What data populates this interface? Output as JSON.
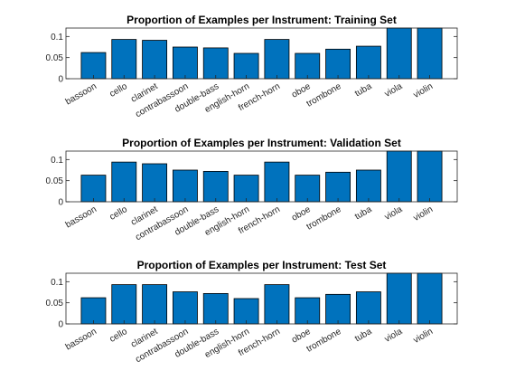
{
  "bar_color": "#0072BD",
  "chart_data": [
    {
      "type": "bar",
      "title": "Proportion of Examples per Instrument: Training Set",
      "categories": [
        "bassoon",
        "cello",
        "clarinet",
        "contrabassoon",
        "double-bass",
        "english-horn",
        "french-horn",
        "oboe",
        "trombone",
        "tuba",
        "viola",
        "violin"
      ],
      "values": [
        0.062,
        0.093,
        0.091,
        0.075,
        0.073,
        0.06,
        0.093,
        0.06,
        0.07,
        0.077,
        0.12,
        0.12
      ],
      "ylim": [
        0,
        0.12
      ],
      "yticks": [
        0,
        0.05,
        0.1
      ],
      "yticklabels": [
        "0",
        "0.05",
        "0.1"
      ],
      "grid": false,
      "xlabel": "",
      "ylabel": ""
    },
    {
      "type": "bar",
      "title": "Proportion of Examples per Instrument: Validation Set",
      "categories": [
        "bassoon",
        "cello",
        "clarinet",
        "contrabassoon",
        "double-bass",
        "english-horn",
        "french-horn",
        "oboe",
        "trombone",
        "tuba",
        "viola",
        "violin"
      ],
      "values": [
        0.063,
        0.094,
        0.09,
        0.075,
        0.072,
        0.063,
        0.094,
        0.063,
        0.07,
        0.075,
        0.12,
        0.12
      ],
      "ylim": [
        0,
        0.12
      ],
      "yticks": [
        0,
        0.05,
        0.1
      ],
      "yticklabels": [
        "0",
        "0.05",
        "0.1"
      ],
      "grid": false,
      "xlabel": "",
      "ylabel": ""
    },
    {
      "type": "bar",
      "title": "Proportion of Examples per Instrument: Test Set",
      "categories": [
        "bassoon",
        "cello",
        "clarinet",
        "contrabassoon",
        "double-bass",
        "english-horn",
        "french-horn",
        "oboe",
        "trombone",
        "tuba",
        "viola",
        "violin"
      ],
      "values": [
        0.062,
        0.093,
        0.093,
        0.076,
        0.072,
        0.06,
        0.093,
        0.062,
        0.07,
        0.076,
        0.12,
        0.12
      ],
      "ylim": [
        0,
        0.12
      ],
      "yticks": [
        0,
        0.05,
        0.1
      ],
      "yticklabels": [
        "0",
        "0.05",
        "0.1"
      ],
      "grid": false,
      "xlabel": "",
      "ylabel": ""
    }
  ]
}
